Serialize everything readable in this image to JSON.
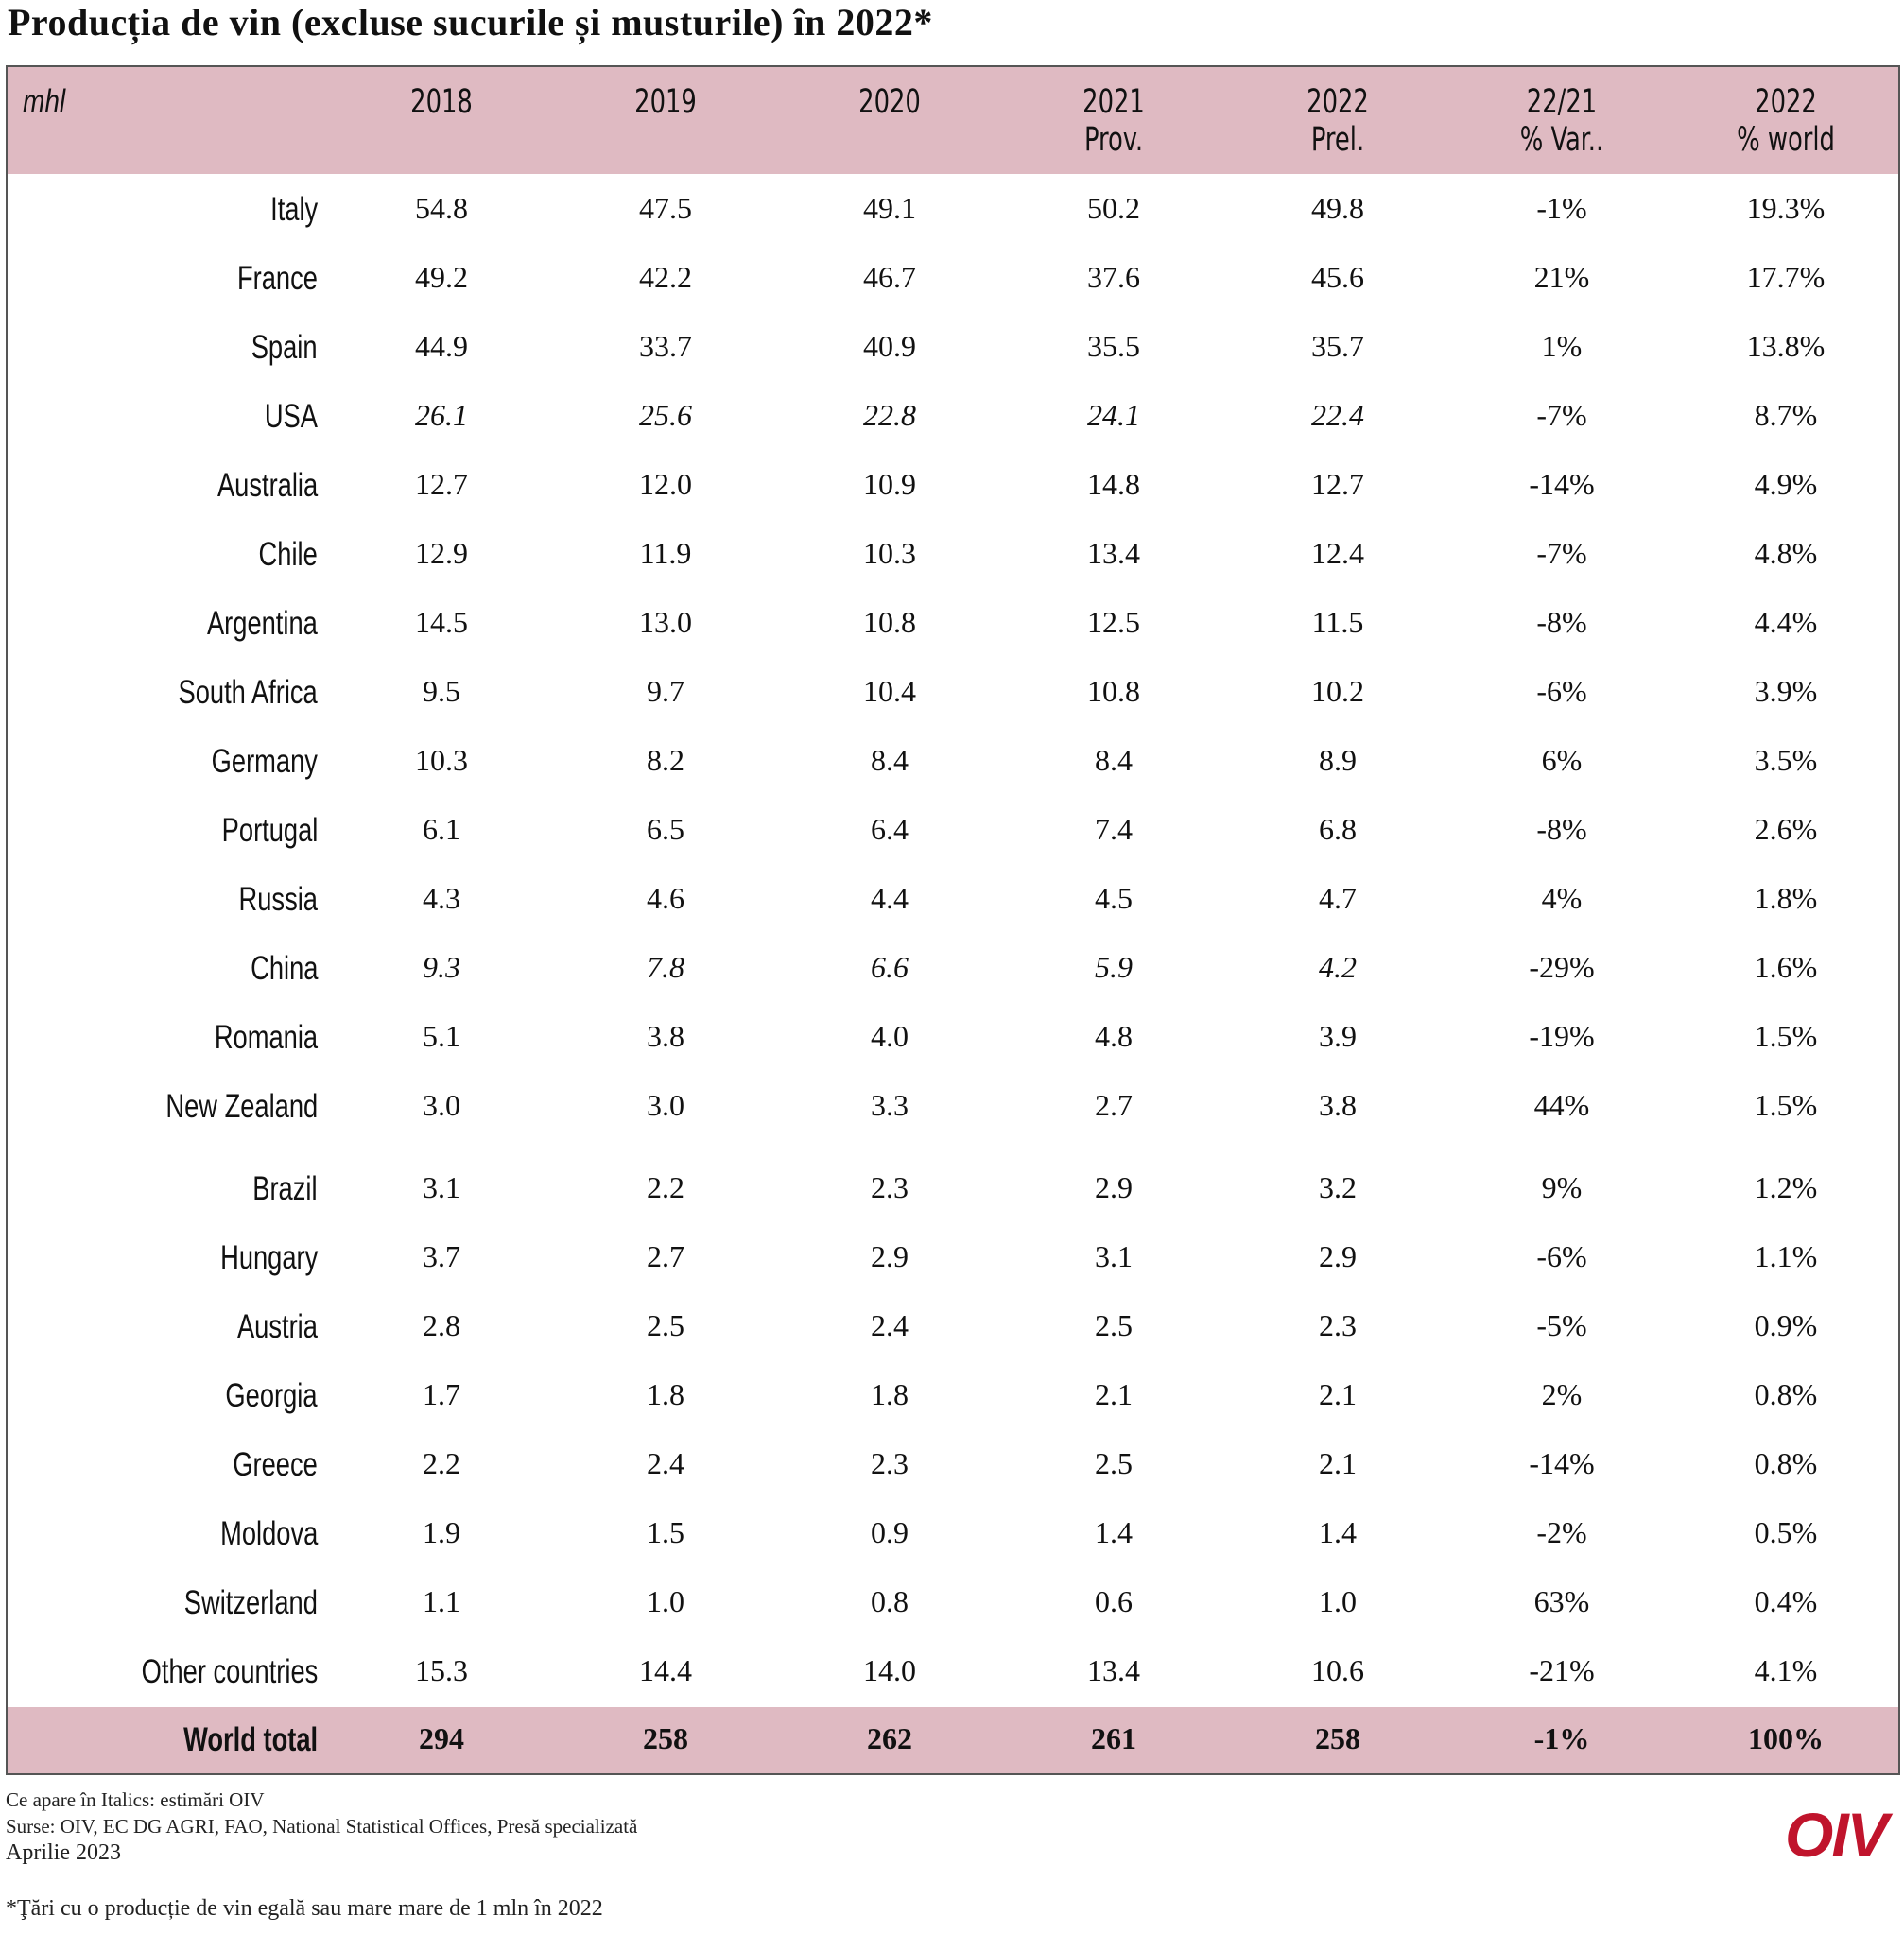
{
  "title": "Producția de vin (excluse sucurile și musturile) în 2022*",
  "header": {
    "unit": "mhl",
    "columns": [
      {
        "line1": "2018",
        "line2": ""
      },
      {
        "line1": "2019",
        "line2": ""
      },
      {
        "line1": "2020",
        "line2": ""
      },
      {
        "line1": "2021",
        "line2": "Prov."
      },
      {
        "line1": "2022",
        "line2": "Prel."
      },
      {
        "line1": "22/21",
        "line2": "% Var.."
      },
      {
        "line1": "2022",
        "line2": "% world"
      }
    ]
  },
  "rows": [
    {
      "country": "Italy",
      "v2018": "54.8",
      "v2019": "47.5",
      "v2020": "49.1",
      "v2021": "50.2",
      "v2022": "49.8",
      "var": "-1%",
      "world": "19.3%",
      "italic": false
    },
    {
      "country": "France",
      "v2018": "49.2",
      "v2019": "42.2",
      "v2020": "46.7",
      "v2021": "37.6",
      "v2022": "45.6",
      "var": "21%",
      "world": "17.7%",
      "italic": false
    },
    {
      "country": "Spain",
      "v2018": "44.9",
      "v2019": "33.7",
      "v2020": "40.9",
      "v2021": "35.5",
      "v2022": "35.7",
      "var": "1%",
      "world": "13.8%",
      "italic": false
    },
    {
      "country": "USA",
      "v2018": "26.1",
      "v2019": "25.6",
      "v2020": "22.8",
      "v2021": "24.1",
      "v2022": "22.4",
      "var": "-7%",
      "world": "8.7%",
      "italic": true
    },
    {
      "country": "Australia",
      "v2018": "12.7",
      "v2019": "12.0",
      "v2020": "10.9",
      "v2021": "14.8",
      "v2022": "12.7",
      "var": "-14%",
      "world": "4.9%",
      "italic": false
    },
    {
      "country": "Chile",
      "v2018": "12.9",
      "v2019": "11.9",
      "v2020": "10.3",
      "v2021": "13.4",
      "v2022": "12.4",
      "var": "-7%",
      "world": "4.8%",
      "italic": false
    },
    {
      "country": "Argentina",
      "v2018": "14.5",
      "v2019": "13.0",
      "v2020": "10.8",
      "v2021": "12.5",
      "v2022": "11.5",
      "var": "-8%",
      "world": "4.4%",
      "italic": false
    },
    {
      "country": "South Africa",
      "v2018": "9.5",
      "v2019": "9.7",
      "v2020": "10.4",
      "v2021": "10.8",
      "v2022": "10.2",
      "var": "-6%",
      "world": "3.9%",
      "italic": false
    },
    {
      "country": "Germany",
      "v2018": "10.3",
      "v2019": "8.2",
      "v2020": "8.4",
      "v2021": "8.4",
      "v2022": "8.9",
      "var": "6%",
      "world": "3.5%",
      "italic": false
    },
    {
      "country": "Portugal",
      "v2018": "6.1",
      "v2019": "6.5",
      "v2020": "6.4",
      "v2021": "7.4",
      "v2022": "6.8",
      "var": "-8%",
      "world": "2.6%",
      "italic": false
    },
    {
      "country": "Russia",
      "v2018": "4.3",
      "v2019": "4.6",
      "v2020": "4.4",
      "v2021": "4.5",
      "v2022": "4.7",
      "var": "4%",
      "world": "1.8%",
      "italic": false
    },
    {
      "country": "China",
      "v2018": "9.3",
      "v2019": "7.8",
      "v2020": "6.6",
      "v2021": "5.9",
      "v2022": "4.2",
      "var": "-29%",
      "world": "1.6%",
      "italic": true
    },
    {
      "country": "Romania",
      "v2018": "5.1",
      "v2019": "3.8",
      "v2020": "4.0",
      "v2021": "4.8",
      "v2022": "3.9",
      "var": "-19%",
      "world": "1.5%",
      "italic": false
    },
    {
      "country": "New Zealand",
      "v2018": "3.0",
      "v2019": "3.0",
      "v2020": "3.3",
      "v2021": "2.7",
      "v2022": "3.8",
      "var": "44%",
      "world": "1.5%",
      "italic": false
    },
    {
      "country": "Brazil",
      "v2018": "3.1",
      "v2019": "2.2",
      "v2020": "2.3",
      "v2021": "2.9",
      "v2022": "3.2",
      "var": "9%",
      "world": "1.2%",
      "italic": false
    },
    {
      "country": "Hungary",
      "v2018": "3.7",
      "v2019": "2.7",
      "v2020": "2.9",
      "v2021": "3.1",
      "v2022": "2.9",
      "var": "-6%",
      "world": "1.1%",
      "italic": false
    },
    {
      "country": "Austria",
      "v2018": "2.8",
      "v2019": "2.5",
      "v2020": "2.4",
      "v2021": "2.5",
      "v2022": "2.3",
      "var": "-5%",
      "world": "0.9%",
      "italic": false
    },
    {
      "country": "Georgia",
      "v2018": "1.7",
      "v2019": "1.8",
      "v2020": "1.8",
      "v2021": "2.1",
      "v2022": "2.1",
      "var": "2%",
      "world": "0.8%",
      "italic": false
    },
    {
      "country": "Greece",
      "v2018": "2.2",
      "v2019": "2.4",
      "v2020": "2.3",
      "v2021": "2.5",
      "v2022": "2.1",
      "var": "-14%",
      "world": "0.8%",
      "italic": false
    },
    {
      "country": "Moldova",
      "v2018": "1.9",
      "v2019": "1.5",
      "v2020": "0.9",
      "v2021": "1.4",
      "v2022": "1.4",
      "var": "-2%",
      "world": "0.5%",
      "italic": false
    },
    {
      "country": "Switzerland",
      "v2018": "1.1",
      "v2019": "1.0",
      "v2020": "0.8",
      "v2021": "0.6",
      "v2022": "1.0",
      "var": "63%",
      "world": "0.4%",
      "italic": false
    },
    {
      "country": "Other countries",
      "v2018": "15.3",
      "v2019": "14.4",
      "v2020": "14.0",
      "v2021": "13.4",
      "v2022": "10.6",
      "var": "-21%",
      "world": "4.1%",
      "italic": false
    }
  ],
  "total": {
    "country": "World total",
    "v2018": "294",
    "v2019": "258",
    "v2020": "262",
    "v2021": "261",
    "v2022": "258",
    "var": "-1%",
    "world": "100%"
  },
  "footer": {
    "note_italics": "Ce apare în Italics: estimări OIV",
    "sources": "Surse: OIV, EC DG AGRI, FAO, National Statistical Offices, Presă specializată",
    "date": "Aprilie 2023",
    "footnote": "*Ţări cu o producție de vin egală sau mare mare de 1 mln în 2022"
  },
  "logo_text": "OIV",
  "colors": {
    "band": "#dfbac2",
    "logo": "#c0142c"
  }
}
